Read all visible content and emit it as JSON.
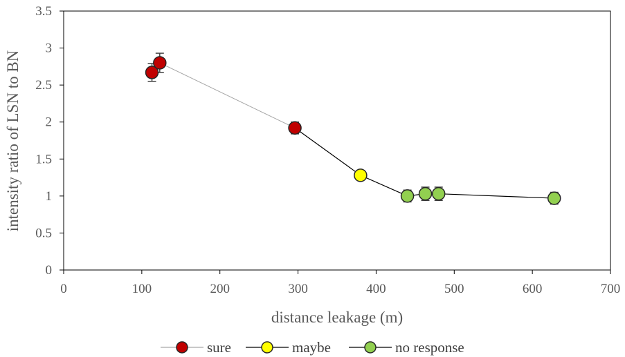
{
  "chart_data": {
    "type": "scatter",
    "xlabel": "distance leakage (m)",
    "ylabel": "intensity ratio of LSN to BN",
    "xlim": [
      0,
      700
    ],
    "ylim": [
      0,
      3.5
    ],
    "x_ticks": [
      "0",
      "100",
      "200",
      "300",
      "400",
      "500",
      "600",
      "700"
    ],
    "y_ticks": [
      "0",
      "0.5",
      "1",
      "1.5",
      "2",
      "2.5",
      "3",
      "3.5"
    ],
    "grid": false,
    "legend_position": "bottom",
    "series": [
      {
        "name": "sure",
        "color": "#c00000",
        "line_color": "#a6a6a6",
        "points": [
          {
            "x": 113,
            "y": 2.67,
            "err": 0.12
          },
          {
            "x": 123,
            "y": 2.8,
            "err": 0.13
          },
          {
            "x": 296,
            "y": 1.92,
            "err": 0.08
          }
        ]
      },
      {
        "name": "maybe",
        "color": "#ffff00",
        "line_color": "#000000",
        "points": [
          {
            "x": 380,
            "y": 1.28,
            "err": 0.0
          }
        ]
      },
      {
        "name": "no response",
        "color": "#92d050",
        "line_color": "#000000",
        "points": [
          {
            "x": 440,
            "y": 1.0,
            "err": 0.08
          },
          {
            "x": 463,
            "y": 1.03,
            "err": 0.09
          },
          {
            "x": 480,
            "y": 1.03,
            "err": 0.09
          },
          {
            "x": 628,
            "y": 0.97,
            "err": 0.08
          }
        ]
      }
    ],
    "connections": [
      {
        "from": [
          123,
          2.8
        ],
        "to": [
          296,
          1.92
        ],
        "color": "#a6a6a6"
      },
      {
        "from": [
          296,
          1.92
        ],
        "to": [
          380,
          1.28
        ],
        "color": "#000000"
      },
      {
        "from": [
          380,
          1.28
        ],
        "to": [
          440,
          1.0
        ],
        "color": "#000000"
      },
      {
        "from": [
          440,
          1.0
        ],
        "to": [
          463,
          1.03
        ],
        "color": "#000000"
      },
      {
        "from": [
          463,
          1.03
        ],
        "to": [
          480,
          1.03
        ],
        "color": "#000000"
      },
      {
        "from": [
          480,
          1.03
        ],
        "to": [
          628,
          0.97
        ],
        "color": "#000000"
      }
    ]
  }
}
